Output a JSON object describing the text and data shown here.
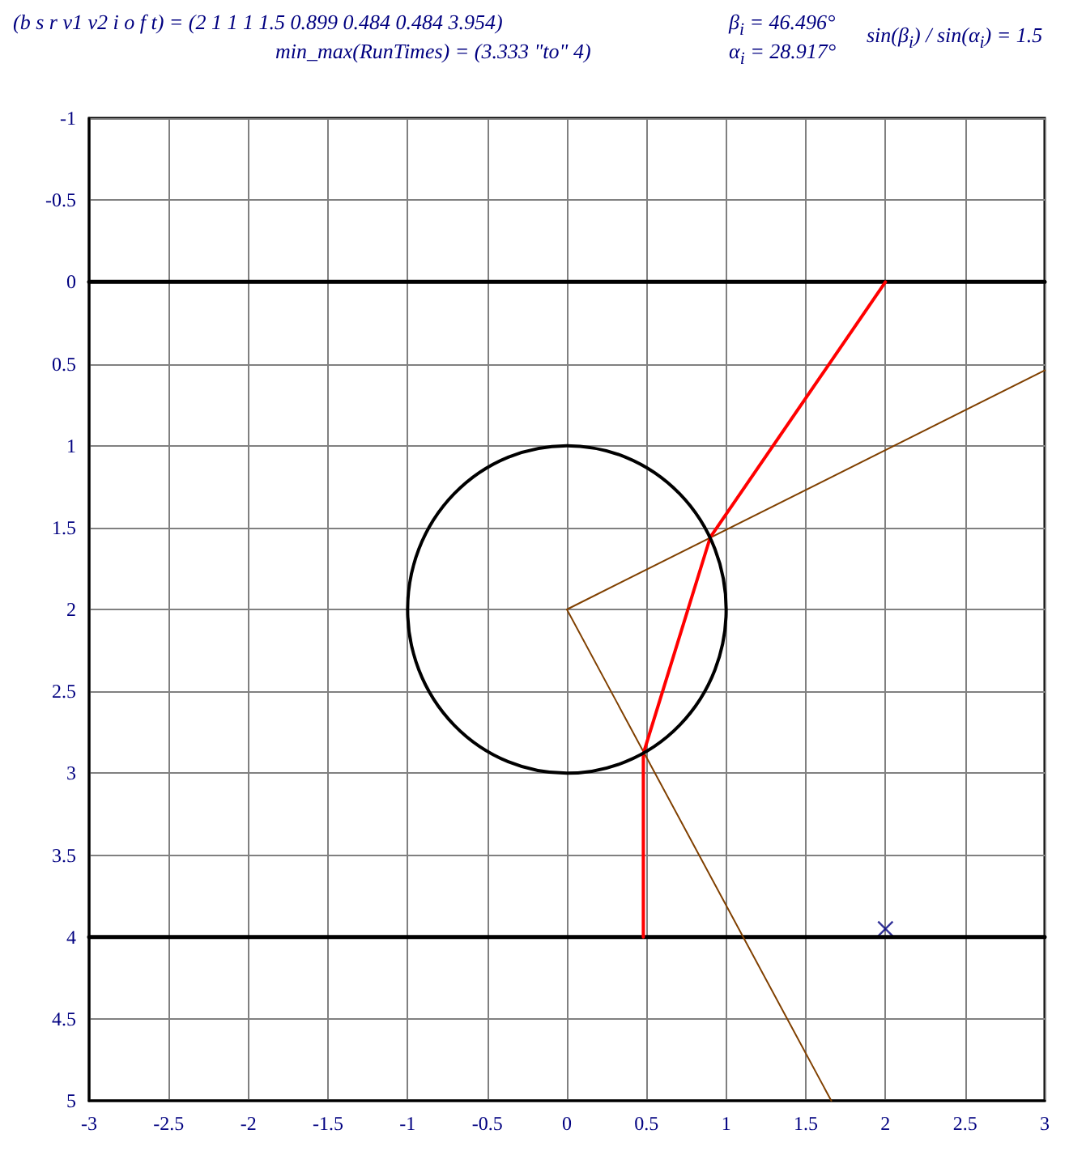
{
  "chart_data": {
    "type": "line",
    "annotations": [
      "(b  s  r  v1  v2  i  o  f  t) = (2  1  1  1  1.5  0.899  0.484  0.484  3.954)",
      "min_max(RunTimes) = (3.333  \"to\"  4)",
      "β$_{i}$ = 46.496°",
      "α$_{i}$ = 28.917°",
      "sin(β$_{i}$) / sin(α$_{i}$) = 1.5"
    ],
    "series": [
      {
        "color": "#000000",
        "marker": "none",
        "x": [
          -3,
          3
        ],
        "values": [
          0,
          0
        ]
      },
      {
        "color": "#000000",
        "marker": "none",
        "x": [
          -3,
          3
        ],
        "values": [
          4,
          4
        ]
      },
      {
        "color": "#804000",
        "marker": "none",
        "x": [
          3,
          0,
          1.66
        ],
        "values": [
          0.54,
          2,
          5
        ]
      },
      {
        "color": "#ff0000",
        "marker": "none",
        "x": [
          2,
          0.9,
          0.48,
          0.48
        ],
        "values": [
          0,
          1.56,
          2.88,
          4
        ]
      },
      {
        "type": "scatter",
        "color": "#000080",
        "marker": "cross",
        "x": [
          2
        ],
        "values": [
          3.95
        ]
      }
    ],
    "xlim": [
      -3,
      3
    ],
    "xticks": [
      -3,
      -2.5,
      -2,
      -1.5,
      -1,
      -0.5,
      0,
      0.5,
      1,
      1.5,
      2,
      2.5,
      3
    ],
    "ylim": [
      5,
      -1
    ],
    "yticks": [
      -1,
      -0.5,
      0,
      0.5,
      1,
      1.5,
      2,
      2.5,
      3,
      3.5,
      4,
      4.5,
      5
    ],
    "grid": true,
    "line_style": "solid"
  }
}
